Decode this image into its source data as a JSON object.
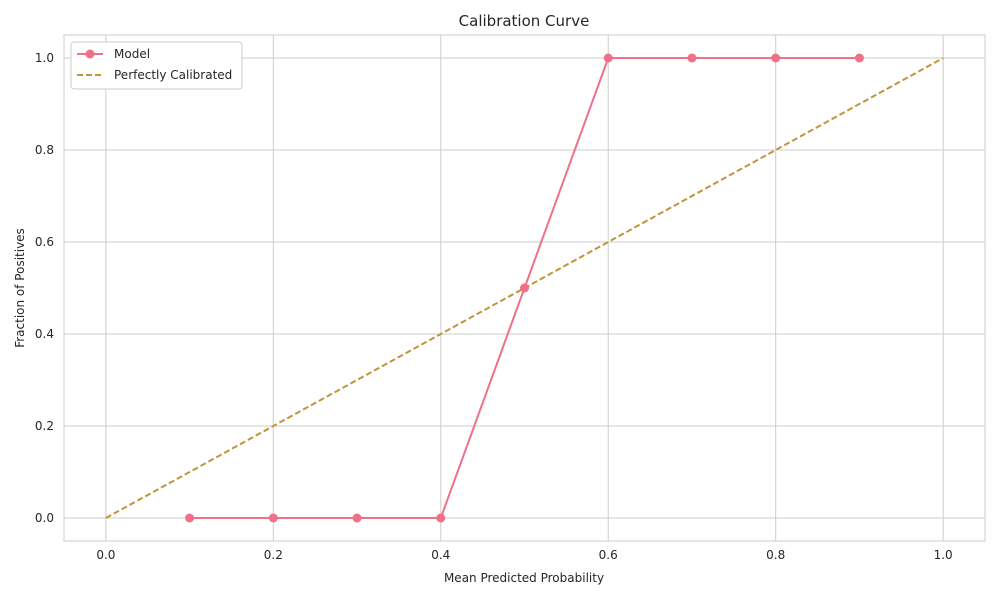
{
  "chart_data": {
    "type": "line",
    "title": "Calibration Curve",
    "xlabel": "Mean Predicted Probability",
    "ylabel": "Fraction of Positives",
    "xlim": [
      -0.05,
      1.05
    ],
    "ylim": [
      -0.05,
      1.05
    ],
    "grid": true,
    "legend_position": "top-left",
    "x_ticks": [
      "0.0",
      "0.2",
      "0.4",
      "0.6",
      "0.8",
      "1.0"
    ],
    "y_ticks": [
      "0.0",
      "0.2",
      "0.4",
      "0.6",
      "0.8",
      "1.0"
    ],
    "series": [
      {
        "name": "Model",
        "color": "#f0708a",
        "style": "solid",
        "markers": true,
        "x": [
          0.1,
          0.2,
          0.3,
          0.4,
          0.5,
          0.6,
          0.7,
          0.8,
          0.9
        ],
        "y": [
          0.0,
          0.0,
          0.0,
          0.0,
          0.5,
          1.0,
          1.0,
          1.0,
          1.0
        ]
      },
      {
        "name": "Perfectly Calibrated",
        "color": "#c0953a",
        "style": "dashed",
        "markers": false,
        "x": [
          0.0,
          1.0
        ],
        "y": [
          0.0,
          1.0
        ]
      }
    ]
  }
}
